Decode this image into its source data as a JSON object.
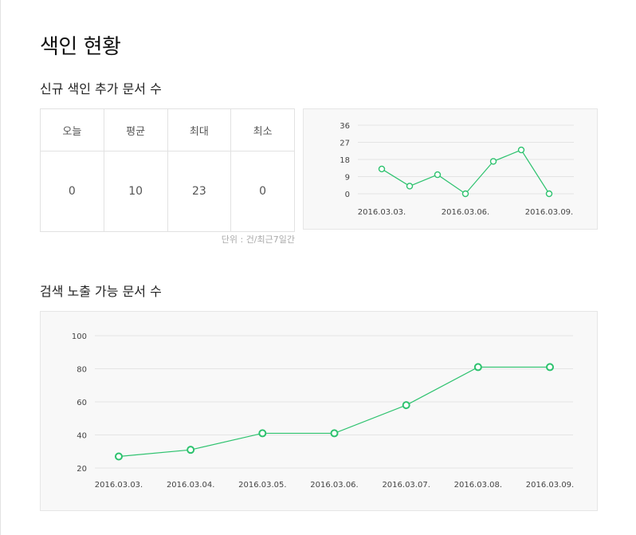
{
  "page": {
    "title": "색인 현황"
  },
  "indexed": {
    "section_title": "신규 색인 추가 문서 수",
    "table": {
      "headers": [
        "오늘",
        "평균",
        "최대",
        "최소"
      ],
      "values": [
        "0",
        "10",
        "23",
        "0"
      ]
    },
    "unit_note": "단위 : 건/최근7일간"
  },
  "exposed": {
    "section_title": "검색 노출 가능 문서 수"
  },
  "colors": {
    "line": "#2dc26e",
    "grid": "#e4e4e4",
    "point_fill": "#ffffff"
  },
  "chart_data": [
    {
      "type": "line",
      "x": [
        "2016.03.03.",
        "2016.03.04.",
        "2016.03.05.",
        "2016.03.06.",
        "2016.03.07.",
        "2016.03.08.",
        "2016.03.09."
      ],
      "x_tick_labels": [
        "2016.03.03.",
        "2016.03.06.",
        "2016.03.09."
      ],
      "series": [
        {
          "values": [
            13,
            4,
            10,
            0,
            17,
            23,
            0
          ]
        }
      ],
      "y_ticks": [
        0,
        9,
        18,
        27,
        36
      ],
      "ylim": [
        0,
        36
      ],
      "grid": true,
      "legend": "none"
    },
    {
      "type": "line",
      "x": [
        "2016.03.03.",
        "2016.03.04.",
        "2016.03.05.",
        "2016.03.06.",
        "2016.03.07.",
        "2016.03.08.",
        "2016.03.09."
      ],
      "x_tick_labels": [
        "2016.03.03.",
        "2016.03.04.",
        "2016.03.05.",
        "2016.03.06.",
        "2016.03.07.",
        "2016.03.08.",
        "2016.03.09."
      ],
      "series": [
        {
          "values": [
            27,
            31,
            41,
            41,
            58,
            81,
            81
          ]
        }
      ],
      "y_ticks": [
        20,
        40,
        60,
        80,
        100
      ],
      "ylim": [
        20,
        100
      ],
      "grid": true,
      "legend": "none"
    }
  ]
}
